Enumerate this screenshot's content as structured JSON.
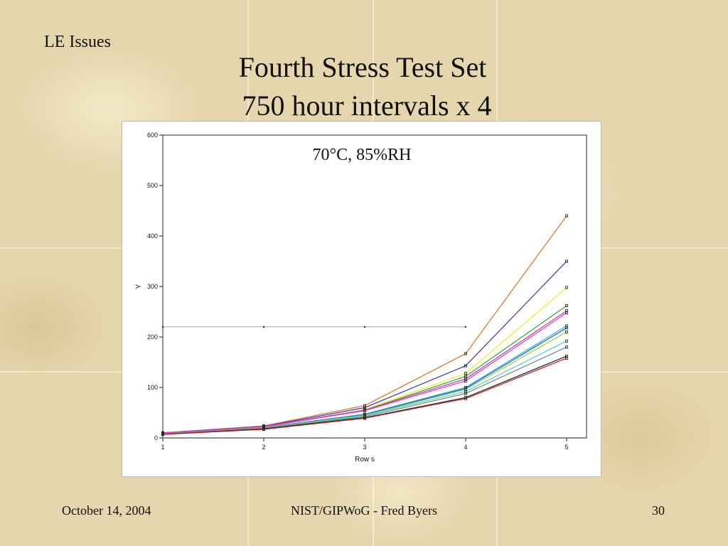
{
  "slide": {
    "section_label": "LE Issues",
    "title_line1": "Fourth Stress Test Set",
    "title_line2": "750 hour intervals x 4",
    "footer_date": "October 14, 2004",
    "footer_center": "NIST/GIPWoG - Fred Byers",
    "page_number": "30"
  },
  "chart_data": {
    "type": "line",
    "title": "70°C, 85%RH",
    "xlabel": "Row s",
    "ylabel": "Y",
    "x": [
      1,
      2,
      3,
      4,
      5
    ],
    "xlim": [
      1,
      5
    ],
    "ylim": [
      0,
      600
    ],
    "xticks": [
      "1",
      "2",
      "3",
      "4",
      "5"
    ],
    "yticks": [
      "0",
      "100",
      "200",
      "300",
      "400",
      "500",
      "600"
    ],
    "grid": false,
    "legend": "none",
    "reference_line": {
      "y": 220,
      "x": [
        1,
        2,
        3,
        4
      ],
      "color": "#999999",
      "marker_color": "#222222"
    },
    "series": [
      {
        "color": "#e07020",
        "values": [
          10,
          24,
          64,
          167,
          440
        ]
      },
      {
        "color": "#3030c8",
        "values": [
          10,
          23,
          60,
          143,
          350
        ]
      },
      {
        "color": "#f0f020",
        "values": [
          9,
          22,
          56,
          128,
          298
        ]
      },
      {
        "color": "#30a830",
        "values": [
          9,
          22,
          55,
          122,
          262
        ]
      },
      {
        "color": "#c830c8",
        "values": [
          10,
          23,
          55,
          117,
          252
        ]
      },
      {
        "color": "#e040b0",
        "values": [
          9,
          22,
          54,
          113,
          248
        ]
      },
      {
        "color": "#20b0e0",
        "values": [
          8,
          21,
          47,
          100,
          222
        ]
      },
      {
        "color": "#2060c8",
        "values": [
          8,
          20,
          46,
          98,
          218
        ]
      },
      {
        "color": "#a0d030",
        "values": [
          8,
          20,
          45,
          96,
          210
        ]
      },
      {
        "color": "#50d0d0",
        "values": [
          8,
          19,
          44,
          92,
          192
        ]
      },
      {
        "color": "#808080",
        "values": [
          8,
          19,
          42,
          88,
          180
        ]
      },
      {
        "color": "#202020",
        "values": [
          7,
          18,
          40,
          80,
          162
        ]
      },
      {
        "color": "#c02020",
        "values": [
          7,
          17,
          39,
          78,
          158
        ]
      }
    ]
  }
}
